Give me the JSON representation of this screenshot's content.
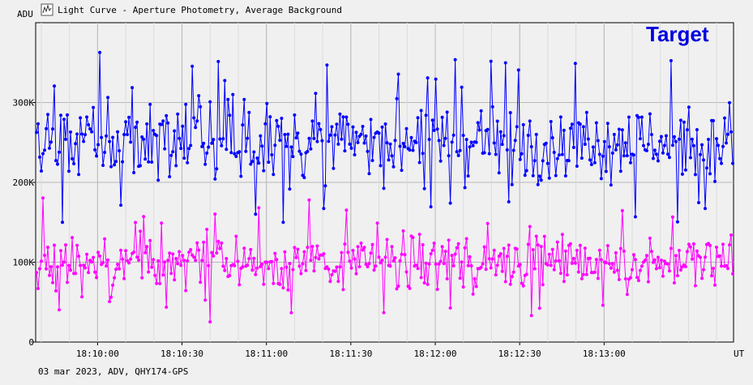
{
  "window": {
    "title": "Light Curve - Aperture Photometry, Average Background",
    "icon": "light-curve-icon"
  },
  "footer": {
    "caption": "03 mar 2023, ADV, QHY174-GPS"
  },
  "chart_data": {
    "type": "line",
    "title": "Light Curve - Aperture Photometry, Average Background",
    "ylabel": "ADU",
    "xlabel": "UT",
    "ylim": [
      0,
      400000
    ],
    "y_ticks": [
      0,
      100000,
      200000,
      300000
    ],
    "y_tick_labels": [
      "0",
      "100K",
      "200K",
      "300K"
    ],
    "x_range": [
      "18:09:38",
      "18:13:46"
    ],
    "x_ticks": [
      "18:10:00",
      "18:10:30",
      "18:11:00",
      "18:11:30",
      "18:12:00",
      "18:12:30",
      "18:13:00"
    ],
    "legend": {
      "label": "Target",
      "placement": "top-right"
    },
    "grid": true,
    "markers": true,
    "series": [
      {
        "name": "Target",
        "color": "#0000ff",
        "mean": 250000,
        "min": 150000,
        "max": 395000,
        "values_sample": [
          248000,
          275000,
          221000,
          302000,
          236000,
          268000,
          259000,
          214000,
          289000,
          241000,
          263000,
          230000,
          281000,
          252000,
          246000,
          297000,
          238000,
          270000,
          224000,
          258000
        ]
      },
      {
        "color": "#ff00ff",
        "mean": 100000,
        "min": 25000,
        "max": 190000,
        "values_sample": [
          98000,
          112000,
          84000,
          127000,
          91000,
          105000,
          76000,
          118000,
          95000,
          131000,
          88000,
          102000,
          69000,
          115000,
          97000,
          108000,
          82000,
          121000,
          93000,
          104000
        ]
      }
    ]
  }
}
